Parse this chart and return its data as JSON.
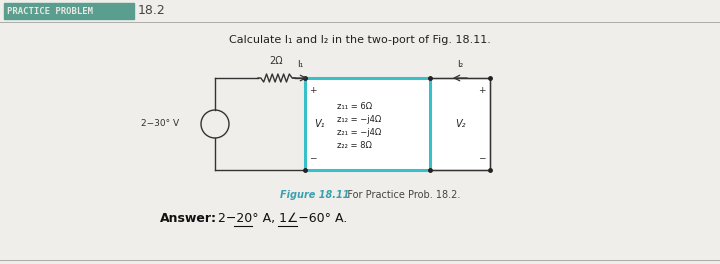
{
  "bg_color": "#f0eeea",
  "header_bg": "#5a9e8f",
  "header_text": "PRACTICE PROBLEM",
  "header_text_color": "#e8e8e0",
  "header_number": "18.2",
  "header_number_color": "#444444",
  "title_line_color": "#aaaaaa",
  "problem_text": "Calculate I₁ and I₂ in the two-port of Fig. 18.11.",
  "figure_caption": "Figure 18.11",
  "figure_caption_color": "#3aa0b0",
  "caption_text": "   For Practice Prob. 18.2.",
  "answer_label": "Answer:",
  "answer_value": "2−20° A, 1∠−60° A.",
  "z_params": [
    "z₁₁ = 6Ω",
    "z₁₂ = −j4Ω",
    "z₂₁ = −j4Ω",
    "z₂₂ = 8Ω"
  ],
  "source_label": "2−30° V",
  "resistor_label": "2Ω",
  "box_color": "#38c0c8",
  "load_box_color": "#888888",
  "wire_color": "#333333",
  "text_color": "#333333"
}
